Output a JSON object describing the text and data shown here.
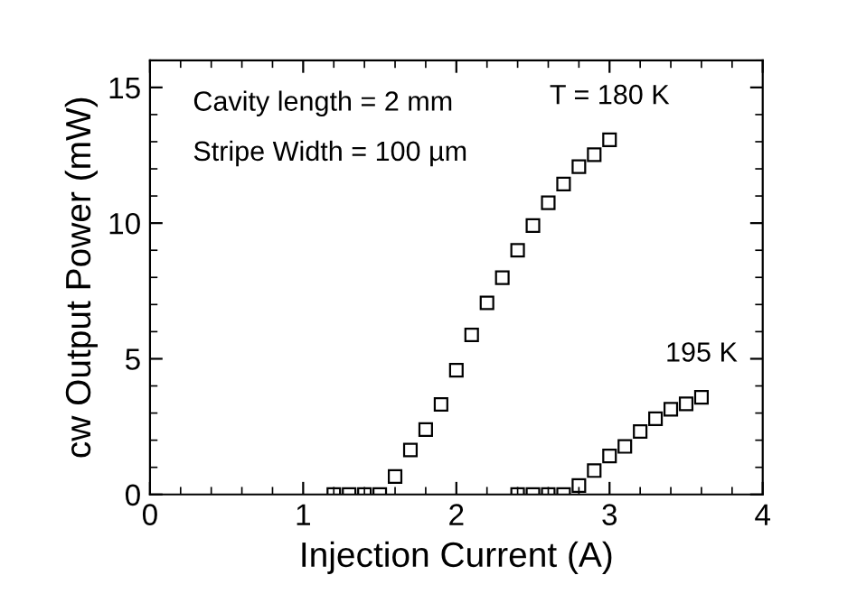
{
  "chart_data": {
    "type": "scatter",
    "xlabel": "Injection Current (A)",
    "ylabel": "cw Output Power (mW)",
    "annotations": [
      "Cavity length = 2 mm",
      "Stripe Width = 100 µm"
    ],
    "series": [
      {
        "name": "T = 180 K",
        "color": "#000000",
        "x": [
          1.2,
          1.3,
          1.4,
          1.5,
          1.6,
          1.7,
          1.8,
          1.9,
          2.0,
          2.1,
          2.2,
          2.3,
          2.4,
          2.5,
          2.6,
          2.7,
          2.8,
          2.9,
          3.0
        ],
        "values": [
          0,
          0,
          0,
          0,
          0.66,
          1.64,
          2.39,
          3.32,
          4.58,
          5.88,
          7.06,
          7.99,
          9.0,
          9.91,
          10.75,
          11.44,
          12.08,
          12.52,
          13.07
        ]
      },
      {
        "name": "195 K",
        "color": "#000000",
        "x": [
          2.4,
          2.5,
          2.6,
          2.7,
          2.8,
          2.9,
          3.0,
          3.1,
          3.2,
          3.3,
          3.4,
          3.5,
          3.6
        ],
        "values": [
          0,
          0,
          0,
          0,
          0.33,
          0.88,
          1.42,
          1.77,
          2.32,
          2.79,
          3.14,
          3.34,
          3.58
        ]
      }
    ],
    "marker": "square",
    "legend": "right",
    "grid": false,
    "xlim": [
      0,
      4
    ],
    "xticks": [
      0,
      1,
      2,
      3,
      4
    ],
    "ylim": [
      0,
      16
    ],
    "yticks": [
      0,
      5,
      10,
      15
    ]
  }
}
